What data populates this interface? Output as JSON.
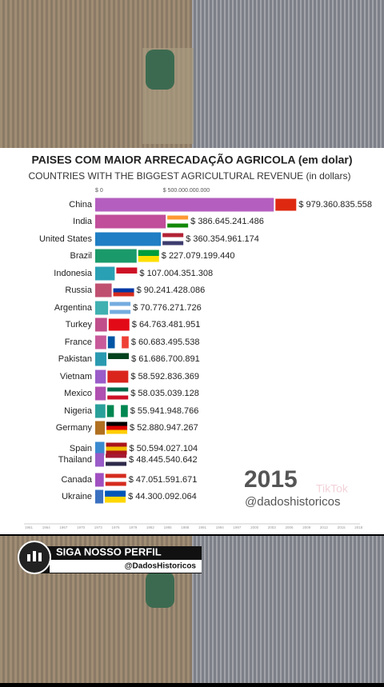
{
  "chart_data": {
    "type": "bar",
    "orientation": "horizontal",
    "title": "PAISES COM MAIOR ARRECADAÇÃO AGRICOLA (em dolar)",
    "subtitle": "COUNTRIES WITH THE BIGGEST AGRICULTURAL REVENUE (in dollars)",
    "year": "2015",
    "handle": "@dadoshistoricos",
    "categories": [
      "China",
      "India",
      "United States",
      "Brazil",
      "Indonesia",
      "Russia",
      "Argentina",
      "Turkey",
      "France",
      "Pakistan",
      "Vietnam",
      "Mexico",
      "Nigeria",
      "Germany",
      "Spain",
      "Thailand",
      "Canada",
      "Ukraine"
    ],
    "values": [
      979360835558,
      386645241486,
      360354961174,
      227079199440,
      107004351308,
      90241428086,
      70776271726,
      64763481951,
      60683495538,
      61686700891,
      58592836369,
      58035039128,
      55941948766,
      52880947267,
      50594027104,
      48445540642,
      47051591671,
      44300092064
    ],
    "value_labels": [
      "$ 979.360.835.558",
      "$ 386.645.241.486",
      "$ 360.354.961.174",
      "$ 227.079.199.440",
      "$ 107.004.351.308",
      "$ 90.241.428.086",
      "$ 70.776.271.726",
      "$ 64.763.481.951",
      "$ 60.683.495.538",
      "$ 61.686.700.891",
      "$ 58.592.836.369",
      "$ 58.035.039.128",
      "$ 55.941.948.766",
      "$ 52.880.947.267",
      "$ 50.594.027.104",
      "$ 48.445.540.642",
      "$ 47.051.591.671",
      "$ 44.300.092.064"
    ],
    "colors": [
      "#b45fc0",
      "#c04e9a",
      "#1f7ec4",
      "#1a9a6a",
      "#2aa0b4",
      "#c05070",
      "#40b0b0",
      "#c04e8a",
      "#c85a9a",
      "#2a9ab0",
      "#9a5cc8",
      "#b050b0",
      "#2aa09a",
      "#b07020",
      "#3a8ad0",
      "#9a5cc8",
      "#a050c0",
      "#3a70c0"
    ],
    "xlim": [
      0,
      1000000000000
    ],
    "xticks": [
      {
        "value": 0,
        "label": "$ 0"
      },
      {
        "value": 500000000000,
        "label": "$ 500.000.000.000"
      }
    ],
    "timeline_years": [
      "1961",
      "1964",
      "1967",
      "1970",
      "1973",
      "1976",
      "1979",
      "1982",
      "1985",
      "1988",
      "1991",
      "1994",
      "1997",
      "2000",
      "2003",
      "2006",
      "2009",
      "2012",
      "2015",
      "2018"
    ]
  },
  "banner": {
    "title": "SIGA NOSSO PERFIL",
    "handle": "@DadosHistoricos"
  },
  "watermark": "TikTok"
}
